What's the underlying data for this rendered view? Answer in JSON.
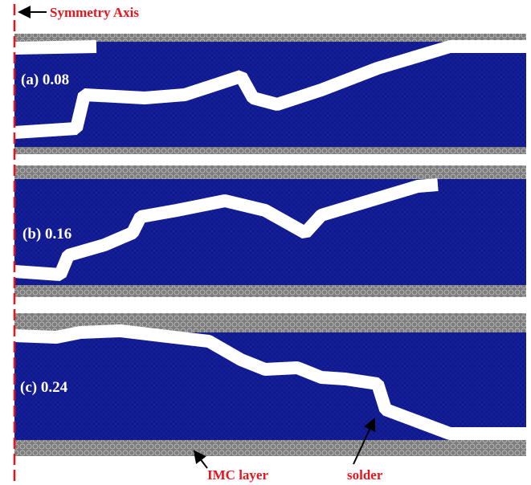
{
  "header": {
    "axis_label": "Symmetry Axis"
  },
  "panels": [
    {
      "label": "(a) 0.08"
    },
    {
      "label": "(b) 0.16"
    },
    {
      "label": "(c) 0.24"
    }
  ],
  "annotations": {
    "imc": "IMC layer",
    "solder": "solder"
  }
}
